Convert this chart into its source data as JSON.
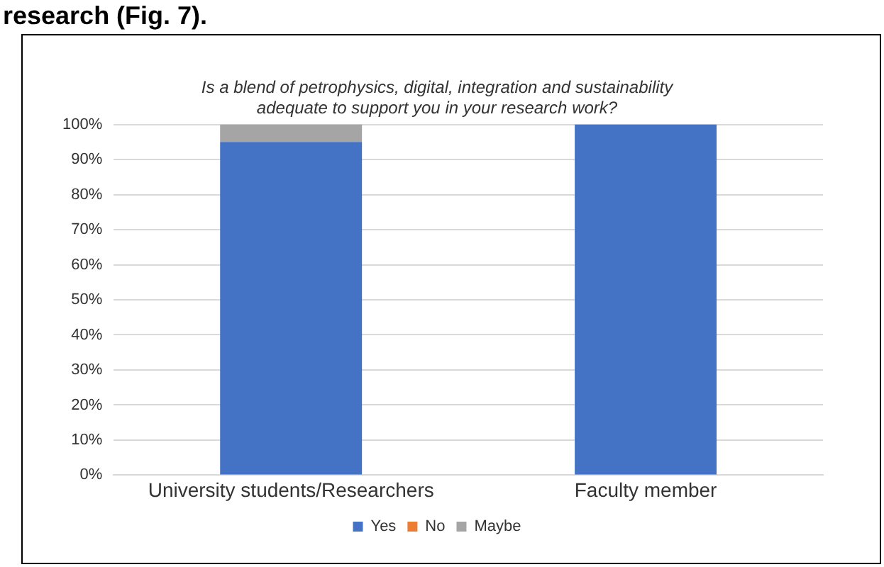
{
  "chart_data": {
    "type": "bar",
    "title": "Is a blend of petrophysics, digital, integration and sustainability adequate to support you in your research work?",
    "annotations": [
      "research (Fig. 7)."
    ],
    "categories": [
      "University students/Researchers",
      "Faculty member"
    ],
    "stacked": true,
    "series": [
      {
        "name": "Yes",
        "color": "#4472c4",
        "values": [
          95,
          100
        ]
      },
      {
        "name": "No",
        "color": "#ed7d31",
        "values": [
          0,
          0
        ]
      },
      {
        "name": "Maybe",
        "color": "#a5a5a5",
        "values": [
          5,
          0
        ]
      }
    ],
    "ylim": [
      0,
      100
    ],
    "yticks": [
      {
        "value": 0,
        "label": "0%"
      },
      {
        "value": 10,
        "label": "10%"
      },
      {
        "value": 20,
        "label": "20%"
      },
      {
        "value": 30,
        "label": "30%"
      },
      {
        "value": 40,
        "label": "40%"
      },
      {
        "value": 50,
        "label": "50%"
      },
      {
        "value": 60,
        "label": "60%"
      },
      {
        "value": 70,
        "label": "70%"
      },
      {
        "value": 80,
        "label": "80%"
      },
      {
        "value": 90,
        "label": "90%"
      },
      {
        "value": 100,
        "label": "100%"
      }
    ],
    "grid": "y",
    "legend": "bottom"
  }
}
